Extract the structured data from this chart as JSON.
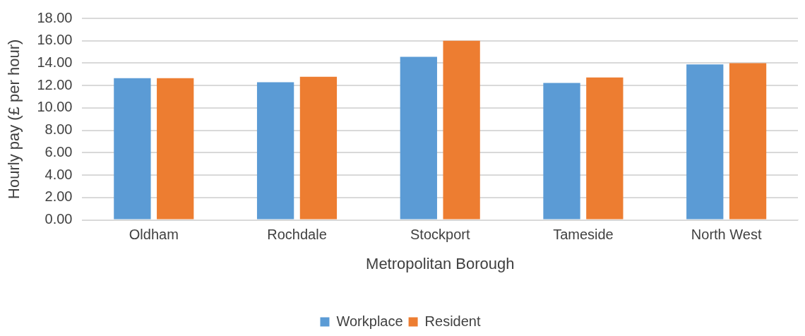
{
  "chart_data": {
    "type": "bar",
    "xlabel": "Metropolitan Borough",
    "ylabel": "Hourly pay (£ per hour)",
    "categories": [
      "Oldham",
      "Rochdale",
      "Stockport",
      "Tameside",
      "North West"
    ],
    "series": [
      {
        "name": "Workplace",
        "color": "#5b9bd5",
        "values": [
          12.66,
          12.29,
          14.56,
          12.24,
          13.89
        ]
      },
      {
        "name": "Resident",
        "color": "#ed7d31",
        "values": [
          12.66,
          12.78,
          16.0,
          12.72,
          14.0
        ]
      }
    ],
    "ylim": [
      0,
      18
    ],
    "yticks": [
      {
        "value": 0,
        "label": "0.00"
      },
      {
        "value": 2,
        "label": "2.00"
      },
      {
        "value": 4,
        "label": "4.00"
      },
      {
        "value": 6,
        "label": "6.00"
      },
      {
        "value": 8,
        "label": "8.00"
      },
      {
        "value": 10,
        "label": "10.00"
      },
      {
        "value": 12,
        "label": "12.00"
      },
      {
        "value": 14,
        "label": "14.00"
      },
      {
        "value": 16,
        "label": "16.00"
      },
      {
        "value": 18,
        "label": "18.00"
      }
    ],
    "grid": "y",
    "legend": "bottom"
  }
}
